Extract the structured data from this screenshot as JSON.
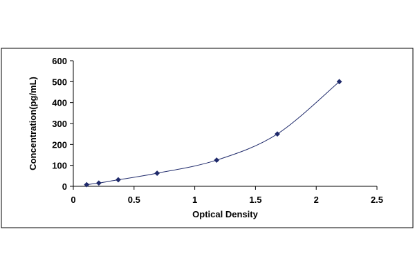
{
  "chart_data": {
    "type": "scatter",
    "title": "",
    "xlabel": "Optical Density",
    "ylabel": "Concentration(pg/mL)",
    "xlim": [
      0,
      2.5
    ],
    "ylim": [
      0,
      600
    ],
    "x_ticks": [
      "0",
      "0.5",
      "1",
      "1.5",
      "2",
      "2.5"
    ],
    "y_ticks": [
      "0",
      "100",
      "200",
      "300",
      "400",
      "500",
      "600"
    ],
    "grid": false,
    "legend": false,
    "trendline": "smooth curve through points",
    "series": [
      {
        "x": [
          0.11,
          0.21,
          0.37,
          0.69,
          1.18,
          1.68,
          2.19
        ],
        "y": [
          7.8,
          15.6,
          31.2,
          62.5,
          125,
          250,
          500
        ],
        "marker": "diamond",
        "color": "#1f2a6b"
      }
    ]
  },
  "colors": {
    "axis": "#000000",
    "frame": "#000000",
    "series": "#1f2a6b",
    "background": "#ffffff"
  }
}
